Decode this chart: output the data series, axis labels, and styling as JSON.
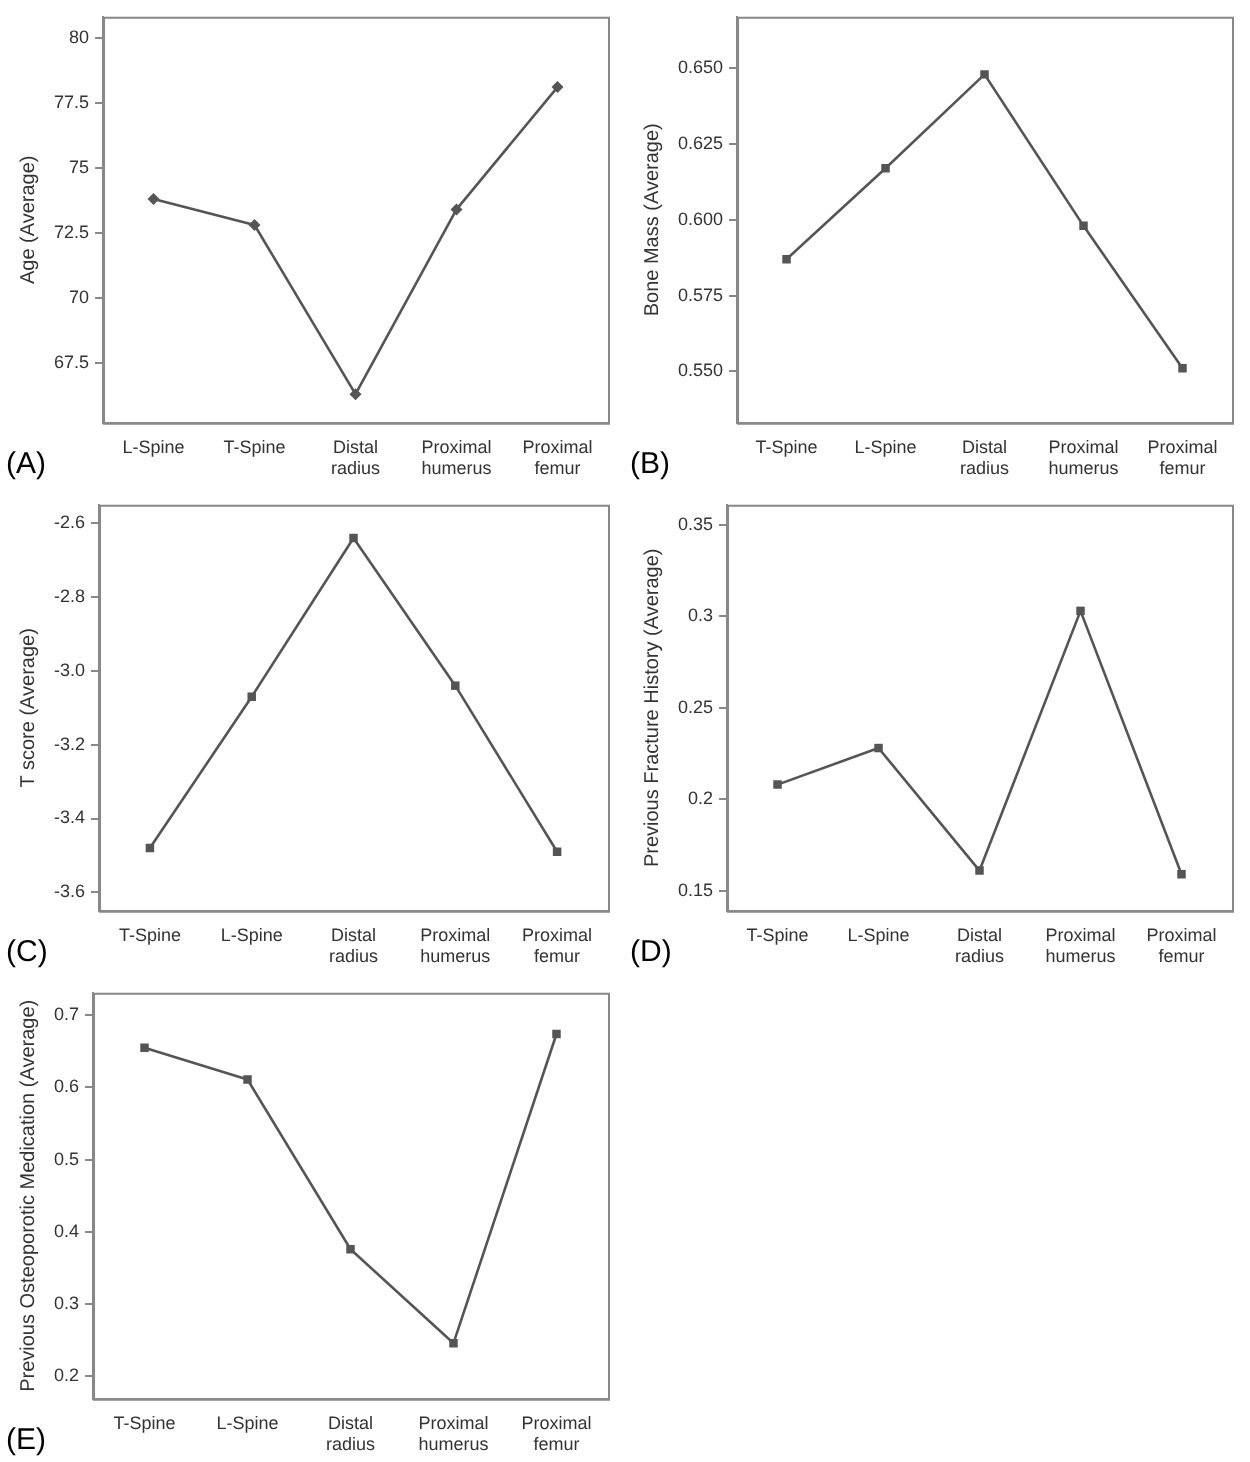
{
  "chart_data": [
    {
      "type": "line",
      "ylabel": "Age (Average)",
      "categories": [
        "L-Spine",
        "T-Spine",
        "Distal radius",
        "Proximal humerus",
        "Proximal femur"
      ],
      "series": [
        {
          "color": "#555555",
          "values": [
            73.8,
            72.8,
            66.3,
            73.4,
            78.1
          ]
        }
      ],
      "ylim": [
        65.2,
        80.8
      ],
      "yticks": [
        67.5,
        70,
        72.5,
        75,
        77.5,
        80
      ],
      "grid": false,
      "legend": false,
      "marker": "diamond",
      "line_style": "solid",
      "annotations": [
        "(A)"
      ]
    },
    {
      "type": "line",
      "ylabel": "Bone Mass (Average)",
      "categories": [
        "T-Spine",
        "L-Spine",
        "Distal radius",
        "Proximal humerus",
        "Proximal femur"
      ],
      "series": [
        {
          "color": "#555555",
          "values": [
            0.587,
            0.617,
            0.648,
            0.598,
            0.551
          ]
        }
      ],
      "ylim": [
        0.533,
        0.667
      ],
      "yticks": [
        {
          "value": 0.55,
          "label": "0.550"
        },
        {
          "value": 0.575,
          "label": "0.575"
        },
        {
          "value": 0.6,
          "label": "0.600"
        },
        {
          "value": 0.625,
          "label": "0.625"
        },
        {
          "value": 0.65,
          "label": "0.650"
        }
      ],
      "grid": false,
      "legend": false,
      "marker": "square",
      "line_style": "solid",
      "annotations": [
        "(B)"
      ]
    },
    {
      "type": "line",
      "ylabel": "T score (Average)",
      "categories": [
        "T-Spine",
        "L-Spine",
        "Distal radius",
        "Proximal humerus",
        "Proximal femur"
      ],
      "series": [
        {
          "color": "#555555",
          "values": [
            -3.48,
            -3.07,
            -2.64,
            -3.04,
            -3.49
          ]
        }
      ],
      "ylim": [
        -3.65,
        -2.55
      ],
      "yticks": [
        -3.6,
        -3.4,
        -3.2,
        {
          "value": -3,
          "label": "-3.0"
        },
        -2.8,
        -2.6
      ],
      "grid": false,
      "legend": false,
      "marker": "square",
      "line_style": "solid",
      "annotations": [
        "(C)"
      ]
    },
    {
      "type": "line",
      "ylabel": "Previous Fracture History (Average)",
      "categories": [
        "T-Spine",
        "L-Spine",
        "Distal radius",
        "Proximal humerus",
        "Proximal femur"
      ],
      "series": [
        {
          "color": "#555555",
          "values": [
            0.208,
            0.228,
            0.161,
            0.303,
            0.159
          ]
        }
      ],
      "ylim": [
        0.139,
        0.361
      ],
      "yticks": [
        0.15,
        0.2,
        0.25,
        0.3,
        0.35
      ],
      "grid": false,
      "legend": false,
      "marker": "square",
      "line_style": "solid",
      "annotations": [
        "(D)"
      ]
    },
    {
      "type": "line",
      "ylabel": "Previous Osteoporotic Medication (Average)",
      "categories": [
        "T-Spine",
        "L-Spine",
        "Distal radius",
        "Proximal humerus",
        "Proximal femur"
      ],
      "series": [
        {
          "color": "#555555",
          "values": [
            0.655,
            0.611,
            0.376,
            0.246,
            0.674
          ]
        }
      ],
      "ylim": [
        0.169,
        0.731
      ],
      "yticks": [
        0.2,
        0.3,
        0.4,
        0.5,
        0.6,
        0.7
      ],
      "grid": false,
      "legend": false,
      "marker": "square",
      "line_style": "solid",
      "annotations": [
        "(E)"
      ]
    }
  ]
}
